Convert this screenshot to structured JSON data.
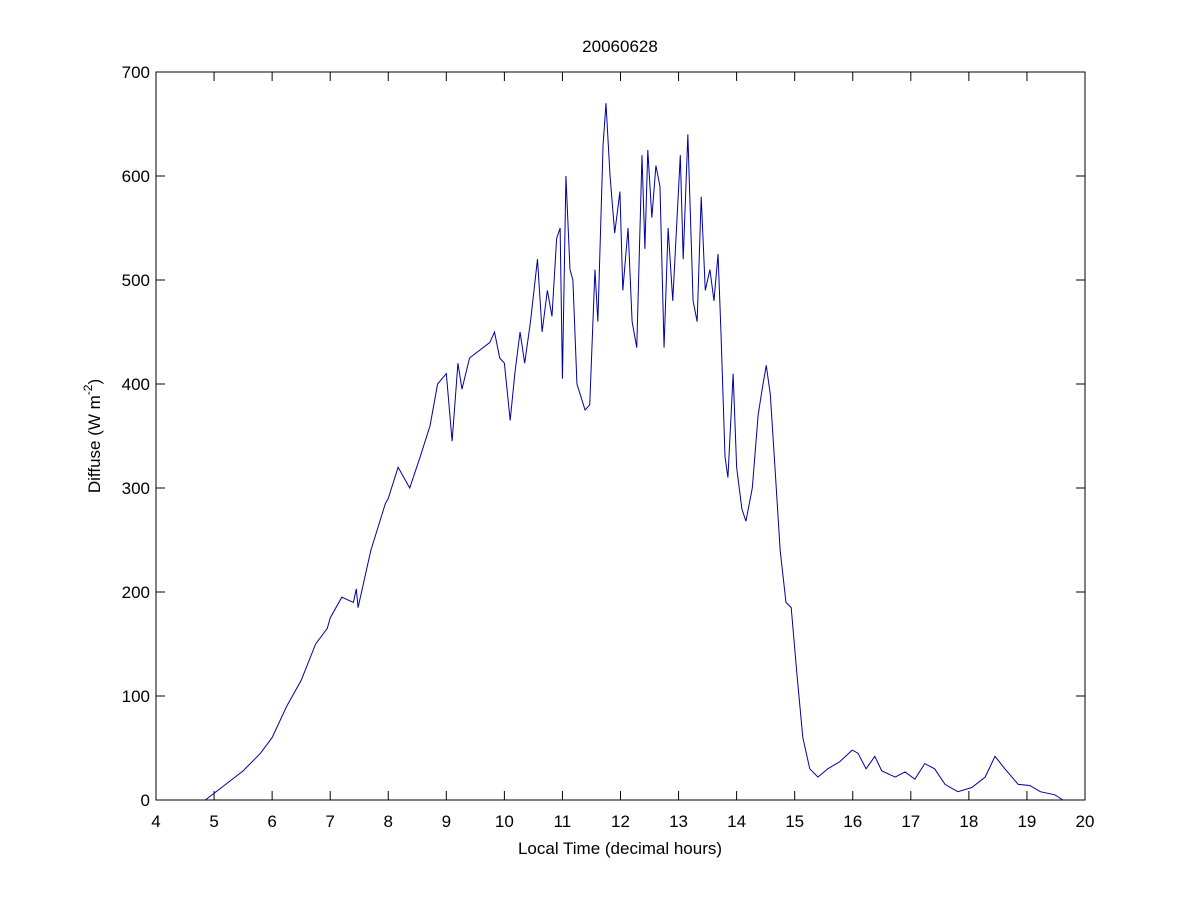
{
  "chart_data": {
    "type": "line",
    "title": "20060628",
    "x_label": "Local Time (decimal hours)",
    "y_label": [
      "Diffuse (W m",
      "-2",
      ")"
    ],
    "xlim": [
      4,
      20
    ],
    "xticks": [
      4,
      5,
      6,
      7,
      8,
      9,
      10,
      11,
      12,
      13,
      14,
      15,
      16,
      17,
      18,
      19,
      20
    ],
    "ylim": [
      0,
      700
    ],
    "yticks": [
      0,
      100,
      200,
      300,
      400,
      500,
      600,
      700
    ],
    "series": [
      {
        "color": "#0000a0",
        "x": [
          4.85,
          5.2,
          5.5,
          5.8,
          6.0,
          6.25,
          6.5,
          6.75,
          6.95,
          7.0,
          7.2,
          7.4,
          7.45,
          7.48,
          7.7,
          7.95,
          8.0,
          8.17,
          8.37,
          8.55,
          8.72,
          8.85,
          9.0,
          9.1,
          9.2,
          9.27,
          9.4,
          9.75,
          9.83,
          9.92,
          10.0,
          10.1,
          10.18,
          10.27,
          10.35,
          10.45,
          10.57,
          10.65,
          10.74,
          10.82,
          10.9,
          10.96,
          11.0,
          11.06,
          11.13,
          11.18,
          11.25,
          11.39,
          11.47,
          11.56,
          11.61,
          11.7,
          11.75,
          11.82,
          11.9,
          11.99,
          12.04,
          12.13,
          12.2,
          12.28,
          12.37,
          12.42,
          12.47,
          12.54,
          12.61,
          12.68,
          12.75,
          12.82,
          12.9,
          13.03,
          13.08,
          13.16,
          13.25,
          13.32,
          13.39,
          13.46,
          13.54,
          13.61,
          13.68,
          13.73,
          13.8,
          13.85,
          13.94,
          14.0,
          14.09,
          14.16,
          14.27,
          14.37,
          14.44,
          14.51,
          14.58,
          14.66,
          14.75,
          14.85,
          14.94,
          15.04,
          15.14,
          15.26,
          15.4,
          15.57,
          15.78,
          15.99,
          16.09,
          16.23,
          16.38,
          16.5,
          16.73,
          16.9,
          17.07,
          17.24,
          17.41,
          17.59,
          17.81,
          18.05,
          18.28,
          18.45,
          18.62,
          18.85,
          19.05,
          19.23,
          19.48,
          19.62
        ],
        "values": [
          0,
          15,
          28,
          45,
          60,
          90,
          115,
          150,
          165,
          175,
          195,
          190,
          203,
          185,
          240,
          285,
          290,
          320,
          300,
          330,
          360,
          400,
          410,
          345,
          420,
          395,
          425,
          440,
          450,
          425,
          420,
          365,
          410,
          450,
          420,
          460,
          520,
          450,
          490,
          465,
          540,
          550,
          405,
          600,
          510,
          500,
          400,
          375,
          380,
          510,
          460,
          630,
          670,
          600,
          545,
          585,
          490,
          550,
          460,
          435,
          620,
          530,
          625,
          560,
          610,
          590,
          435,
          550,
          480,
          620,
          520,
          640,
          480,
          460,
          580,
          490,
          510,
          480,
          525,
          450,
          330,
          310,
          410,
          320,
          280,
          268,
          300,
          370,
          395,
          418,
          390,
          320,
          240,
          190,
          185,
          120,
          60,
          30,
          22,
          30,
          37,
          48,
          45,
          30,
          42,
          28,
          22,
          27,
          20,
          35,
          30,
          15,
          8,
          12,
          22,
          42,
          30,
          15,
          14,
          8,
          5,
          0
        ]
      }
    ]
  }
}
